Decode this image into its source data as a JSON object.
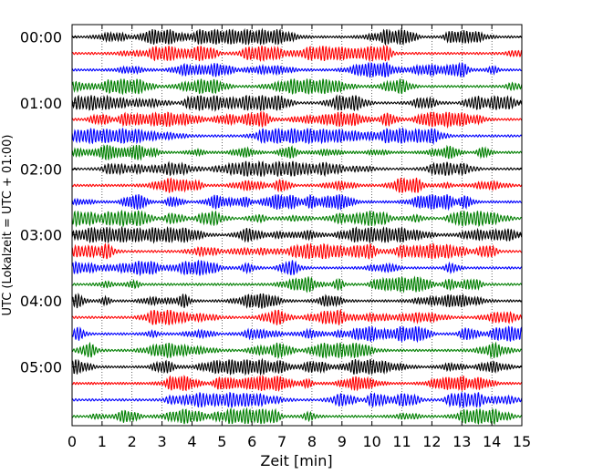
{
  "chart_data": {
    "type": "line",
    "title": "",
    "xlabel": "Zeit  [min]",
    "ylabel": "UTC (Lokalzeit = UTC + 01:00)",
    "xlim": [
      0,
      15
    ],
    "x_ticks": [
      "0",
      "1",
      "2",
      "3",
      "4",
      "5",
      "6",
      "7",
      "8",
      "9",
      "10",
      "11",
      "12",
      "13",
      "14",
      "15"
    ],
    "y_ticks": [
      "00:00",
      "01:00",
      "02:00",
      "03:00",
      "04:00",
      "05:00"
    ],
    "trace_interval_min": 15,
    "trace_count": 24,
    "colors": [
      "#000000",
      "#ff0000",
      "#0000ff",
      "#007f00"
    ],
    "grid": "vertical dotted"
  }
}
